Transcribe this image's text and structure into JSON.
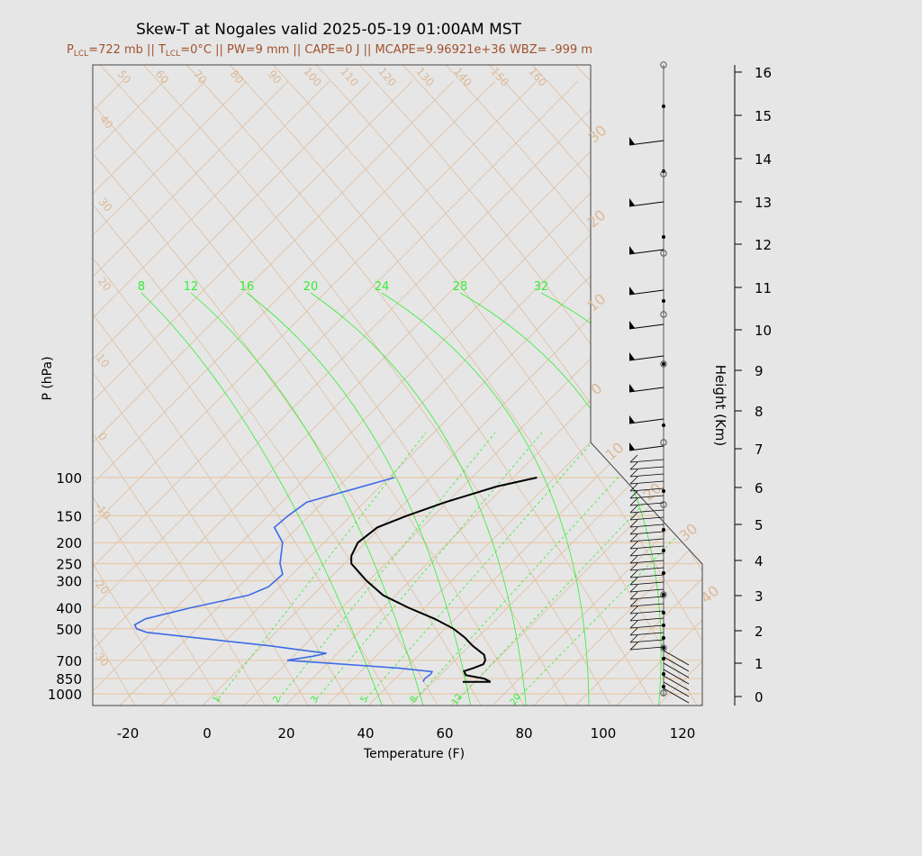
{
  "title": "Skew-T at Nogales valid 2025-05-19 01:00AM MST",
  "subtitle": {
    "p_lcl_label": "P",
    "p_lcl_sub": "LCL",
    "p_lcl_value": "=722 mb || ",
    "t_lcl_label": "T",
    "t_lcl_sub": "LCL",
    "t_lcl_value": "=0°C || PW=9 mm || CAPE=0 J || MCAPE=9.96921e+36 WBZ= -999 m"
  },
  "colors": {
    "temperature": "#000000",
    "dewpoint": "#3e6be6",
    "mixing_ratio": "#33ee33",
    "background_lines": "#ddb896",
    "isobar": "#e8c8a8",
    "subtitle": "#a0522d"
  },
  "chart_data": {
    "type": "line",
    "title": "Skew-T at Nogales valid 2025-05-19 01:00AM MST",
    "xlabel": "Temperature (F)",
    "ylabel": "P (hPa)",
    "y2label": "Height (Km)",
    "xlim": [
      -20,
      120
    ],
    "ylim_pressure": [
      1000,
      100
    ],
    "log_y": true,
    "grid": true,
    "x_ticks": [
      "-20",
      "0",
      "20",
      "40",
      "60",
      "80",
      "100",
      "120"
    ],
    "x_tick_values": [
      -20,
      0,
      20,
      40,
      60,
      80,
      100,
      120
    ],
    "y_ticks": [
      "100",
      "150",
      "200",
      "250",
      "300",
      "400",
      "500",
      "700",
      "850",
      "1000"
    ],
    "y_tick_values": [
      100,
      150,
      200,
      250,
      300,
      400,
      500,
      700,
      850,
      1000
    ],
    "height_ticks": [
      "0",
      "1",
      "2",
      "3",
      "4",
      "5",
      "6",
      "7",
      "8",
      "9",
      "10",
      "11",
      "12",
      "13",
      "14",
      "15",
      "16"
    ],
    "series": [
      {
        "name": "Temperature",
        "points": [
          [
            880,
            63
          ],
          [
            880,
            70
          ],
          [
            850,
            68
          ],
          [
            820,
            63
          ],
          [
            785,
            62
          ],
          [
            760,
            64
          ],
          [
            730,
            66
          ],
          [
            700,
            66
          ],
          [
            660,
            65
          ],
          [
            600,
            61
          ],
          [
            550,
            58
          ],
          [
            500,
            54
          ],
          [
            450,
            48
          ],
          [
            400,
            40
          ],
          [
            350,
            32
          ],
          [
            300,
            26
          ],
          [
            250,
            20
          ],
          [
            230,
            19
          ],
          [
            200,
            19
          ],
          [
            170,
            22
          ],
          [
            150,
            28
          ],
          [
            130,
            36
          ],
          [
            110,
            47
          ],
          [
            100,
            56
          ]
        ]
      },
      {
        "name": "Dewpoint",
        "points": [
          [
            880,
            53
          ],
          [
            850,
            53
          ],
          [
            810,
            54
          ],
          [
            790,
            54
          ],
          [
            760,
            45
          ],
          [
            700,
            16
          ],
          [
            670,
            22
          ],
          [
            650,
            25
          ],
          [
            620,
            16
          ],
          [
            600,
            10
          ],
          [
            560,
            -6
          ],
          [
            520,
            -23
          ],
          [
            500,
            -26
          ],
          [
            480,
            -27
          ],
          [
            450,
            -25
          ],
          [
            400,
            -15
          ],
          [
            350,
            -2
          ],
          [
            320,
            2
          ],
          [
            300,
            3
          ],
          [
            280,
            4
          ],
          [
            250,
            2
          ],
          [
            200,
            0
          ],
          [
            170,
            -4
          ],
          [
            150,
            -2
          ],
          [
            130,
            1
          ],
          [
            100,
            20
          ]
        ]
      }
    ],
    "dry_adiabat_labels": [
      "50",
      "60",
      "70",
      "80",
      "90",
      "100",
      "110",
      "120",
      "130",
      "140",
      "150",
      "160",
      "40",
      "30",
      "20",
      "10",
      "0",
      "-10",
      "-20",
      "-30"
    ],
    "skewed_isotherm_labels": [
      "30",
      "20",
      "10",
      "0",
      "10",
      "20",
      "30",
      "40"
    ],
    "moist_adiabat_labels": [
      "8",
      "12",
      "16",
      "20",
      "24",
      "28",
      "32"
    ],
    "mixing_ratio_labels": [
      "1",
      "2",
      "3",
      "5",
      "8",
      "12",
      "20"
    ]
  }
}
